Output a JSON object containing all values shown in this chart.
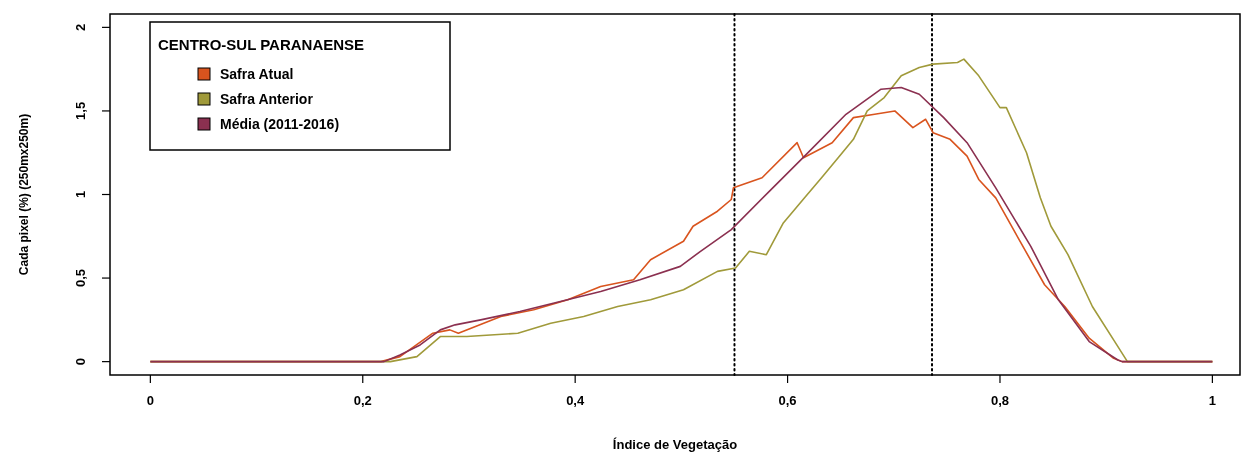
{
  "chart_data": {
    "type": "line",
    "xlabel": "Índice de Vegetação",
    "ylabel": "Cada pixel (%) (250mx250m)",
    "legend_title": "CENTRO-SUL PARANAENSE",
    "legend": "top left",
    "xlim": [
      -0.038,
      1.026
    ],
    "ylim": [
      -0.08,
      2.08
    ],
    "xticks": [
      0,
      {
        "value": 0.2,
        "label": "0,2"
      },
      {
        "value": 0.4,
        "label": "0,4"
      },
      {
        "value": 0.6,
        "label": "0,6"
      },
      {
        "value": 0.8,
        "label": "0,8"
      },
      1
    ],
    "yticks": [
      0,
      {
        "value": 0.5,
        "label": "0,5"
      },
      1,
      {
        "value": 1.5,
        "label": "1,5"
      },
      2
    ],
    "ref_lines": [
      {
        "axis": "x",
        "value": 0.55,
        "line_style": "dotted",
        "color": "#000000"
      },
      {
        "axis": "x",
        "value": 0.736,
        "line_style": "dotted",
        "color": "#000000"
      }
    ],
    "series": [
      {
        "name": "Safra Atual",
        "color": "#d9541e",
        "x": [
          0,
          0.217,
          0.235,
          0.266,
          0.282,
          0.29,
          0.33,
          0.361,
          0.393,
          0.424,
          0.455,
          0.471,
          0.502,
          0.511,
          0.534,
          0.547,
          0.549,
          0.576,
          0.609,
          0.615,
          0.642,
          0.662,
          0.682,
          0.701,
          0.718,
          0.73,
          0.737,
          0.753,
          0.769,
          0.78,
          0.796,
          0.818,
          0.842,
          0.861,
          0.884,
          0.907,
          0.915,
          1
        ],
        "values": [
          0,
          0,
          0.03,
          0.17,
          0.19,
          0.17,
          0.27,
          0.31,
          0.37,
          0.45,
          0.49,
          0.61,
          0.72,
          0.81,
          0.9,
          0.97,
          1.04,
          1.1,
          1.31,
          1.22,
          1.31,
          1.46,
          1.48,
          1.5,
          1.4,
          1.45,
          1.37,
          1.33,
          1.23,
          1.09,
          0.98,
          0.73,
          0.46,
          0.33,
          0.14,
          0.02,
          0,
          0
        ]
      },
      {
        "name": "Safra Anterior",
        "color": "#a09a3a",
        "x": [
          0,
          0.226,
          0.251,
          0.273,
          0.298,
          0.346,
          0.377,
          0.408,
          0.44,
          0.471,
          0.502,
          0.534,
          0.551,
          0.564,
          0.58,
          0.596,
          0.616,
          0.632,
          0.649,
          0.662,
          0.675,
          0.691,
          0.707,
          0.724,
          0.737,
          0.76,
          0.766,
          0.78,
          0.8,
          0.806,
          0.825,
          0.838,
          0.848,
          0.864,
          0.887,
          0.91,
          0.92,
          1
        ],
        "values": [
          0,
          0,
          0.03,
          0.15,
          0.15,
          0.17,
          0.23,
          0.27,
          0.33,
          0.37,
          0.43,
          0.54,
          0.56,
          0.66,
          0.64,
          0.83,
          0.98,
          1.1,
          1.23,
          1.33,
          1.5,
          1.58,
          1.71,
          1.76,
          1.78,
          1.79,
          1.81,
          1.71,
          1.52,
          1.52,
          1.25,
          0.98,
          0.81,
          0.64,
          0.33,
          0.1,
          0,
          0
        ]
      },
      {
        "name": "Média (2011-2016)",
        "color": "#8b3050",
        "x": [
          0,
          0.22,
          0.235,
          0.254,
          0.273,
          0.287,
          0.311,
          0.348,
          0.386,
          0.424,
          0.461,
          0.499,
          0.518,
          0.547,
          0.583,
          0.616,
          0.655,
          0.688,
          0.707,
          0.724,
          0.747,
          0.769,
          0.796,
          0.829,
          0.855,
          0.884,
          0.911,
          0.915,
          1
        ],
        "values": [
          0,
          0,
          0.04,
          0.1,
          0.19,
          0.22,
          0.25,
          0.3,
          0.36,
          0.42,
          0.49,
          0.57,
          0.66,
          0.79,
          1.02,
          1.23,
          1.48,
          1.63,
          1.64,
          1.6,
          1.46,
          1.31,
          1.04,
          0.69,
          0.37,
          0.12,
          0.01,
          0,
          0
        ]
      }
    ]
  }
}
